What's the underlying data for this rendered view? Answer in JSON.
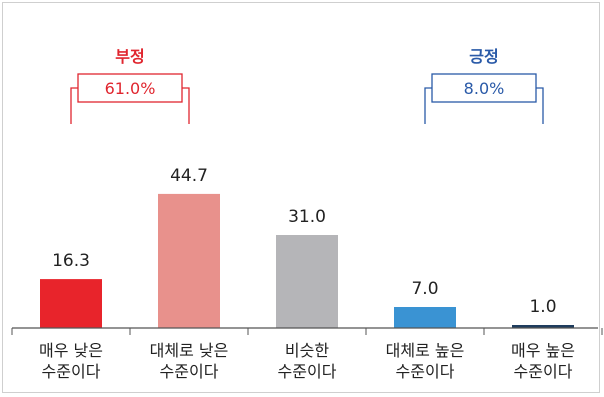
{
  "chart_data": {
    "type": "bar",
    "categories": [
      [
        "매우 낮은",
        "수준이다"
      ],
      [
        "대체로 낮은",
        "수준이다"
      ],
      [
        "비슷한",
        "수준이다"
      ],
      [
        "대체로 높은",
        "수준이다"
      ],
      [
        "매우 높은",
        "수준이다"
      ]
    ],
    "values": [
      16.3,
      44.7,
      31.0,
      7.0,
      1.0
    ],
    "value_labels": [
      "16.3",
      "44.7",
      "31.0",
      "7.0",
      "1.0"
    ],
    "colors": [
      "#e8242b",
      "#e8918c",
      "#b5b5b8",
      "#3a93d3",
      "#1f3d5e"
    ],
    "groups": [
      {
        "title": "부정",
        "value": "61.0%",
        "color": "#e0262f",
        "span": [
          0,
          1
        ]
      },
      {
        "title": "긍정",
        "value": "8.0%",
        "color": "#2a5aa8",
        "span": [
          3,
          4
        ]
      }
    ],
    "ylim": [
      0,
      50
    ],
    "grid": false
  }
}
